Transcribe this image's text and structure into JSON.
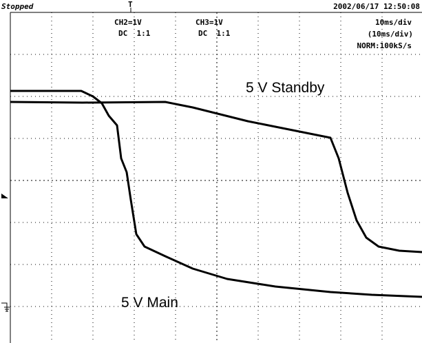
{
  "header": {
    "status": "Stopped",
    "trigger_mark": "T",
    "timestamp": "2002/06/17 12:50:08"
  },
  "channels": [
    {
      "scale": "CH2=1V",
      "coupling": "DC  1:1"
    },
    {
      "scale": "CH3=1V",
      "coupling": "DC  1:1"
    }
  ],
  "timebase": {
    "scale": "10ms/div",
    "zoom_scale": "(10ms/div)",
    "mode": "NORM:100kS/s"
  },
  "annotations": {
    "standby": "5 V Standby",
    "main": "5 V Main"
  }
}
